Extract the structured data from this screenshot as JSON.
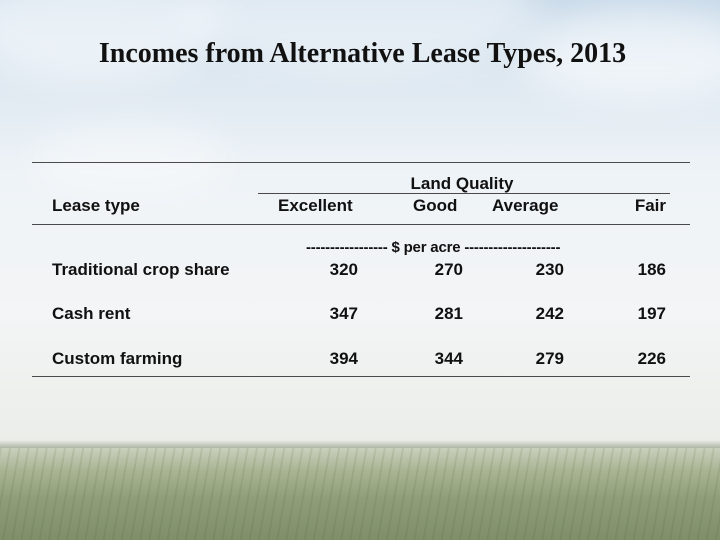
{
  "title": "Incomes from Alternative Lease Types, 2013",
  "table": {
    "group_header": "Land Quality",
    "row_header": "Lease type",
    "columns": [
      "Excellent",
      "Good",
      "Average",
      "Fair"
    ],
    "unit_label": "----------------- $ per acre --------------------",
    "rows": [
      {
        "label": "Traditional crop share",
        "values": [
          "320",
          "270",
          "230",
          "186"
        ]
      },
      {
        "label": "Cash rent",
        "values": [
          "347",
          "281",
          "242",
          "197"
        ]
      },
      {
        "label": "Custom farming",
        "values": [
          "394",
          "344",
          "279",
          "226"
        ]
      }
    ]
  }
}
